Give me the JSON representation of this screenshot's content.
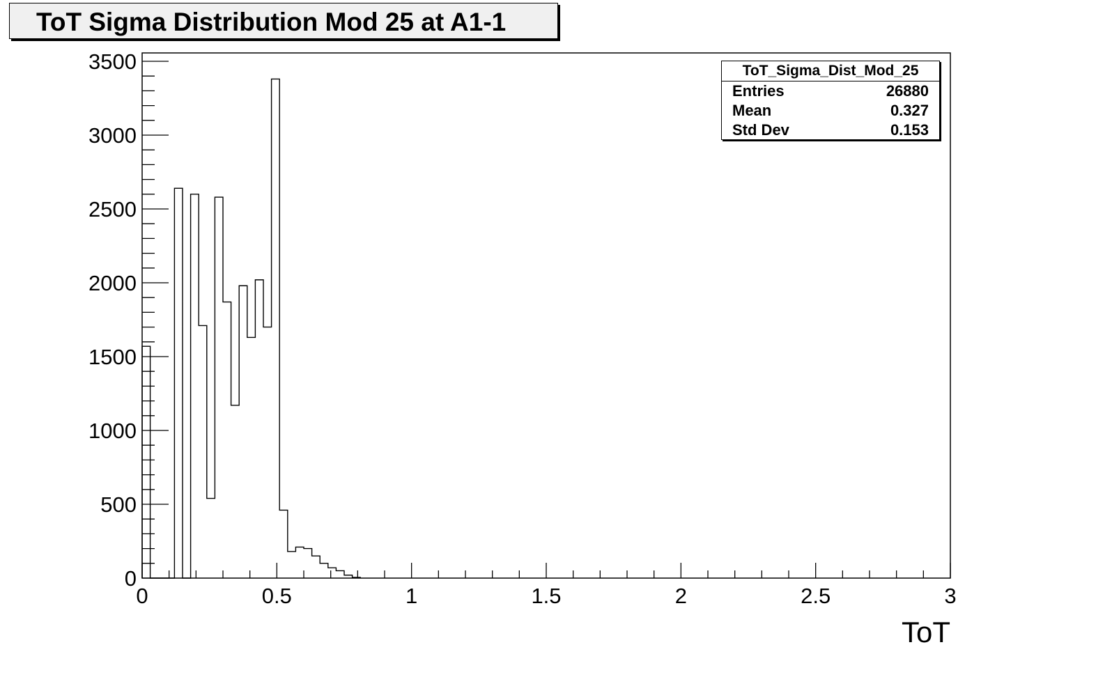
{
  "title": "ToT Sigma Distribution Mod 25 at A1-1",
  "stats": {
    "name": "ToT_Sigma_Dist_Mod_25",
    "rows": [
      {
        "label": "Entries",
        "value": "26880"
      },
      {
        "label": "Mean",
        "value": "0.327"
      },
      {
        "label": "Std Dev",
        "value": "0.153"
      }
    ]
  },
  "chart_data": {
    "type": "bar",
    "xlabel": "ToT",
    "ylabel": "",
    "xlim": [
      0,
      3
    ],
    "ylim": [
      0,
      3550
    ],
    "x_ticks": [
      "0",
      "0.5",
      "1",
      "1.5",
      "2",
      "2.5",
      "3"
    ],
    "y_ticks": [
      "0",
      "500",
      "1000",
      "1500",
      "2000",
      "2500",
      "3000",
      "3500"
    ],
    "bin_width": 0.03,
    "series": [
      {
        "values": [
          1570,
          0,
          0,
          0,
          2640,
          0,
          2600,
          1710,
          540,
          2580,
          1870,
          1170,
          1980,
          1630,
          2020,
          1700,
          3380,
          460,
          180,
          210,
          200,
          150,
          100,
          70,
          50,
          20,
          5
        ]
      }
    ],
    "grid": false,
    "color": "#000000"
  }
}
